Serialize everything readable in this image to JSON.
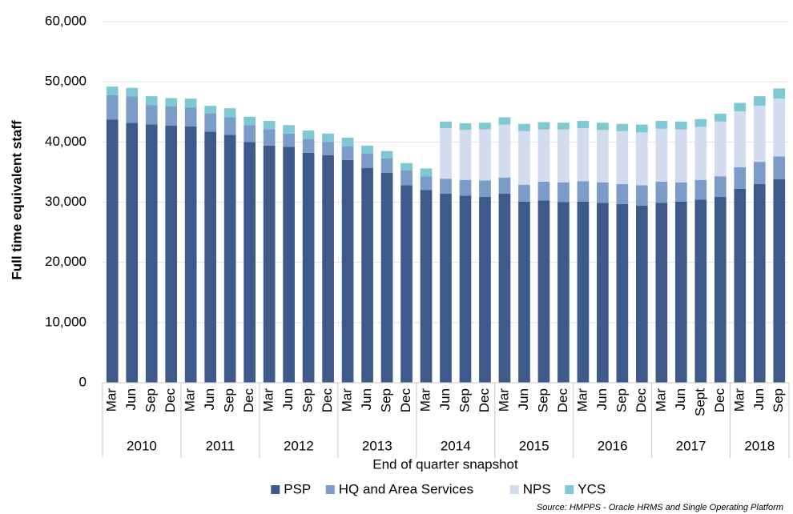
{
  "chart_data": {
    "type": "stacked_bar",
    "y_label": "Full time equivalent staff",
    "x_label": "End of quarter snapshot",
    "source": "Source: HMPPS - Oracle HRMS and Single Operating Platform",
    "groups": [
      {
        "name": "2010",
        "categories": [
          "Mar",
          "Jun",
          "Sep",
          "Dec"
        ]
      },
      {
        "name": "2011",
        "categories": [
          "Mar",
          "Jun",
          "Sep",
          "Dec"
        ]
      },
      {
        "name": "2012",
        "categories": [
          "Mar",
          "Jun",
          "Sep",
          "Dec"
        ]
      },
      {
        "name": "2013",
        "categories": [
          "Mar",
          "Jun",
          "Sep",
          "Dec"
        ]
      },
      {
        "name": "2014",
        "categories": [
          "Mar",
          "Jun",
          "Sep",
          "Dec"
        ]
      },
      {
        "name": "2015",
        "categories": [
          "Mar",
          "Jun",
          "Sep",
          "Dec"
        ]
      },
      {
        "name": "2016",
        "categories": [
          "Mar",
          "Jun",
          "Sep",
          "Dec"
        ]
      },
      {
        "name": "2017",
        "categories": [
          "Mar",
          "Jun",
          "Sept",
          "Dec"
        ]
      },
      {
        "name": "2018",
        "categories": [
          "Mar",
          "Jun",
          "Sep"
        ]
      }
    ],
    "series": [
      {
        "name": "PSP",
        "color": "#3d5a8a",
        "values": [
          43700,
          43200,
          42900,
          42700,
          42600,
          41700,
          41200,
          40000,
          39400,
          39200,
          38200,
          37800,
          37000,
          35700,
          34900,
          32800,
          32000,
          31400,
          31100,
          30900,
          31400,
          30100,
          30300,
          30000,
          30100,
          29900,
          29700,
          29400,
          29900,
          30100,
          30400,
          30900,
          32200,
          33000,
          33800
        ]
      },
      {
        "name": "HQ and Area Services",
        "color": "#7b9bc8",
        "values": [
          4100,
          4400,
          3200,
          3200,
          3100,
          3000,
          2900,
          2800,
          2700,
          2200,
          2300,
          2200,
          2300,
          2400,
          2400,
          2500,
          2300,
          2500,
          2600,
          2700,
          2700,
          2800,
          3100,
          3300,
          3400,
          3400,
          3300,
          3400,
          3500,
          3200,
          3300,
          3400,
          3600,
          3700,
          3800
        ]
      },
      {
        "name": "NPS",
        "color": "#d3dcec",
        "values": [
          null,
          null,
          null,
          null,
          null,
          null,
          null,
          null,
          null,
          null,
          null,
          null,
          null,
          null,
          null,
          null,
          null,
          8400,
          8300,
          8500,
          8800,
          8900,
          8700,
          8800,
          8800,
          8700,
          8800,
          8800,
          8800,
          8800,
          8800,
          9100,
          9300,
          9300,
          9600
        ]
      },
      {
        "name": "YCS",
        "color": "#7ec8d4",
        "values": [
          1400,
          1400,
          1500,
          1400,
          1500,
          1300,
          1500,
          1400,
          1400,
          1400,
          1400,
          1400,
          1400,
          1300,
          1200,
          1200,
          1300,
          1100,
          1100,
          1100,
          1200,
          1200,
          1200,
          1100,
          1200,
          1200,
          1200,
          1300,
          1300,
          1300,
          1300,
          1300,
          1400,
          1600,
          1700
        ]
      }
    ],
    "ylim": [
      0,
      60000
    ],
    "yticks": [
      0,
      {
        "value": 10000,
        "label": "10,000"
      },
      {
        "value": 20000,
        "label": "20,000"
      },
      {
        "value": 30000,
        "label": "30,000"
      },
      {
        "value": 40000,
        "label": "40,000"
      },
      {
        "value": 50000,
        "label": "50,000"
      },
      {
        "value": 60000,
        "label": "60,000"
      }
    ],
    "grid": true
  }
}
